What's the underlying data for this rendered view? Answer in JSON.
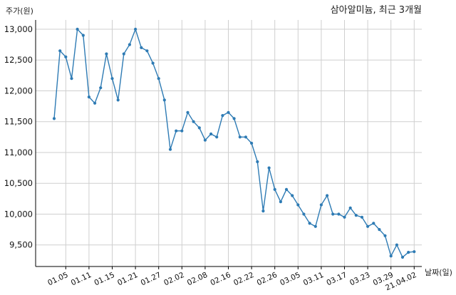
{
  "chart_data": {
    "type": "line",
    "title": "삼아알미늄, 최근 3개월",
    "xlabel": "날짜(일)",
    "ylabel": "주가(원)",
    "ylim": [
      9150,
      13150
    ],
    "yticks": [
      9500,
      10000,
      10500,
      11000,
      11500,
      12000,
      12500,
      13000
    ],
    "ytick_labels": [
      "9,500",
      "10,000",
      "10,500",
      "11,000",
      "11,500",
      "12,000",
      "12,500",
      "13,000"
    ],
    "xticks": [
      {
        "label": "01.05",
        "index": 2
      },
      {
        "label": "01.11",
        "index": 6
      },
      {
        "label": "01.15",
        "index": 10
      },
      {
        "label": "01.21",
        "index": 14
      },
      {
        "label": "01.27",
        "index": 18
      },
      {
        "label": "02.02",
        "index": 22
      },
      {
        "label": "02.08",
        "index": 26
      },
      {
        "label": "02.16",
        "index": 30
      },
      {
        "label": "02.22",
        "index": 34
      },
      {
        "label": "02.26",
        "index": 38
      },
      {
        "label": "03.05",
        "index": 42
      },
      {
        "label": "03.11",
        "index": 46
      },
      {
        "label": "03.17",
        "index": 50
      },
      {
        "label": "03.23",
        "index": 54
      },
      {
        "label": "03.29",
        "index": 58
      },
      {
        "label": "21.04.02",
        "index": 62
      }
    ],
    "grid": true,
    "series": [
      {
        "color": "#2e7bb4",
        "values": [
          11550,
          12650,
          12550,
          12200,
          13000,
          12900,
          11900,
          11800,
          12050,
          12600,
          12200,
          11850,
          12600,
          12750,
          13000,
          12700,
          12650,
          12450,
          12200,
          11850,
          11050,
          11350,
          11350,
          11650,
          11500,
          11400,
          11200,
          11300,
          11250,
          11600,
          11650,
          11550,
          11250,
          11250,
          11150,
          10850,
          10050,
          10750,
          10400,
          10200,
          10400,
          10300,
          10150,
          10000,
          9850,
          9800,
          10150,
          10300,
          10000,
          10000,
          9950,
          10100,
          9980,
          9950,
          9800,
          9850,
          9750,
          9650,
          9320,
          9500,
          9300,
          9380,
          9390
        ]
      }
    ]
  }
}
